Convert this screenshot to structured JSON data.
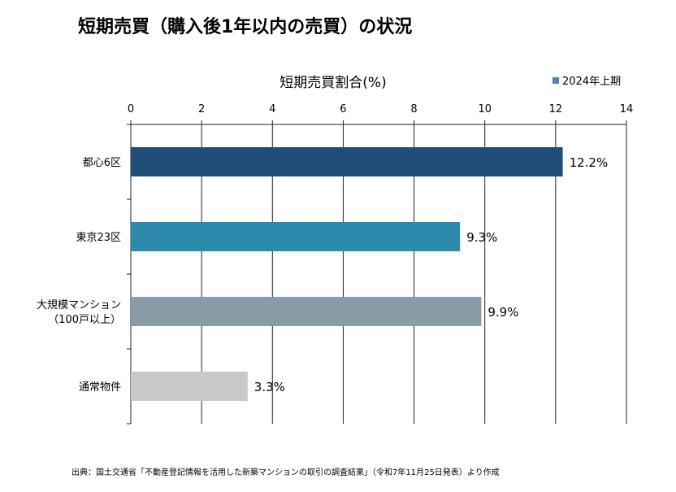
{
  "chart_data": {
    "type": "bar",
    "orientation": "horizontal",
    "title": "短期売買（購入後1年以内の売買）の状況",
    "xlabel": "短期売買割合(%)",
    "xlim": [
      0,
      14
    ],
    "xticks": [
      0,
      2,
      4,
      6,
      8,
      10,
      12,
      14
    ],
    "grid": true,
    "legend": {
      "position": "top-right",
      "entries": [
        "2024年上期"
      ],
      "color": "#4f81bd"
    },
    "categories": [
      {
        "lines": [
          "都心6区"
        ]
      },
      {
        "lines": [
          "東京23区"
        ]
      },
      {
        "lines": [
          "大規模マンション",
          "（100戸以上）"
        ]
      },
      {
        "lines": [
          "通常物件"
        ]
      }
    ],
    "series": [
      {
        "name": "2024年上期",
        "values": [
          12.2,
          9.3,
          9.9,
          3.3
        ]
      }
    ],
    "data_labels": [
      "12.2%",
      "9.3%",
      "9.9%",
      "3.3%"
    ],
    "bar_colors": [
      "#1f4e79",
      "#2e8aad",
      "#8a9ba8",
      "#c8c8c8"
    ],
    "source_note": "出典：国土交通省「不動産登記情報を活用した新築マンションの取引の調査結果」（令和7年11月25日発表）より作成"
  }
}
